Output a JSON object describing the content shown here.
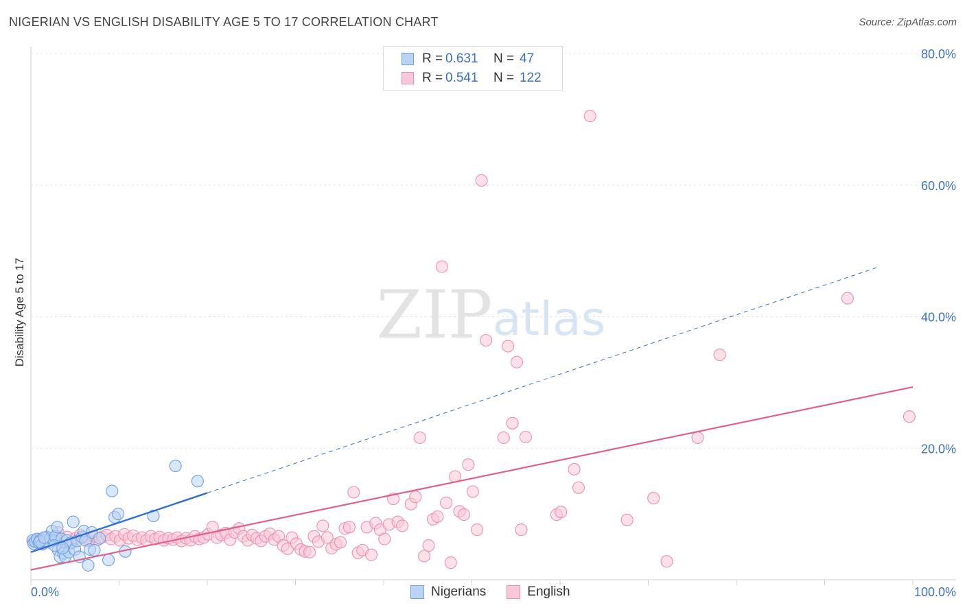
{
  "header": {
    "title": "NIGERIAN VS ENGLISH DISABILITY AGE 5 TO 17 CORRELATION CHART",
    "source": "Source: ZipAtlas.com"
  },
  "legend": {
    "r_label": "R =",
    "n_label": "N =",
    "rows": [
      {
        "name": "Nigerians",
        "r": "0.631",
        "n": "47",
        "fill": "#b8d3f5",
        "stroke": "#6f9fe0"
      },
      {
        "name": "English",
        "r": "0.541",
        "n": "122",
        "fill": "#f9c8d7",
        "stroke": "#ee8fae"
      }
    ]
  },
  "watermark": {
    "zip": "ZIP",
    "atlas": "atlas"
  },
  "chart_data": {
    "type": "scatter",
    "title": "NIGERIAN VS ENGLISH DISABILITY AGE 5 TO 17 CORRELATION CHART",
    "xlabel": "",
    "ylabel": "Disability Age 5 to 17",
    "xlim": [
      0,
      100
    ],
    "ylim": [
      0,
      80
    ],
    "x_tick_labels": [
      "0.0%",
      "100.0%"
    ],
    "y_ticks": [
      20,
      40,
      60,
      80
    ],
    "y_tick_labels": [
      "20.0%",
      "40.0%",
      "60.0%",
      "80.0%"
    ],
    "grid": true,
    "series": [
      {
        "name": "Nigerians",
        "color": "#6f9fe0",
        "fill": "#b8d3f5",
        "trend_color": "#2f6fd0",
        "trend": {
          "x0": 0,
          "y0": 4.2,
          "x1": 20,
          "y1": 13.2,
          "dash_to_x": 96,
          "dash_to_y": 47.5
        },
        "points": [
          [
            0.2,
            6.0
          ],
          [
            0.3,
            5.5
          ],
          [
            0.5,
            5.8
          ],
          [
            0.7,
            6.2
          ],
          [
            0.9,
            5.6
          ],
          [
            1.1,
            6.1
          ],
          [
            1.3,
            5.4
          ],
          [
            1.6,
            5.9
          ],
          [
            1.8,
            6.5
          ],
          [
            2.0,
            5.7
          ],
          [
            2.2,
            6.3
          ],
          [
            2.4,
            7.4
          ],
          [
            2.6,
            5.9
          ],
          [
            2.8,
            6.6
          ],
          [
            3.0,
            8.0
          ],
          [
            3.1,
            4.5
          ],
          [
            3.3,
            3.5
          ],
          [
            3.5,
            6.2
          ],
          [
            3.7,
            4.0
          ],
          [
            3.9,
            3.5
          ],
          [
            4.1,
            6.0
          ],
          [
            4.3,
            4.2
          ],
          [
            4.5,
            5.6
          ],
          [
            4.8,
            8.8
          ],
          [
            5.0,
            4.6
          ],
          [
            5.2,
            5.9
          ],
          [
            5.5,
            3.5
          ],
          [
            5.8,
            6.5
          ],
          [
            6.0,
            7.4
          ],
          [
            6.2,
            6.0
          ],
          [
            6.5,
            2.2
          ],
          [
            6.7,
            4.6
          ],
          [
            6.9,
            7.2
          ],
          [
            7.2,
            4.5
          ],
          [
            7.8,
            6.3
          ],
          [
            8.8,
            3.0
          ],
          [
            9.2,
            13.5
          ],
          [
            9.5,
            9.5
          ],
          [
            9.9,
            10.0
          ],
          [
            10.7,
            4.3
          ],
          [
            13.9,
            9.7
          ],
          [
            16.4,
            17.3
          ],
          [
            18.9,
            15.0
          ],
          [
            1.0,
            5.8
          ],
          [
            1.5,
            6.4
          ],
          [
            2.7,
            5.2
          ],
          [
            3.6,
            4.8
          ]
        ]
      },
      {
        "name": "English",
        "color": "#ee8fae",
        "fill": "#f9c8d7",
        "trend_color": "#e0608a",
        "trend": {
          "x0": 0,
          "y0": 1.5,
          "x1": 100,
          "y1": 29.3
        },
        "points": [
          [
            0.3,
            5.8
          ],
          [
            0.8,
            6.2
          ],
          [
            1.3,
            5.5
          ],
          [
            2.0,
            6.4
          ],
          [
            2.6,
            6.0
          ],
          [
            3.1,
            7.2
          ],
          [
            3.6,
            5.8
          ],
          [
            4.1,
            6.5
          ],
          [
            4.6,
            5.6
          ],
          [
            5.1,
            6.3
          ],
          [
            5.6,
            6.8
          ],
          [
            6.1,
            6.4
          ],
          [
            6.6,
            5.9
          ],
          [
            7.1,
            6.6
          ],
          [
            7.6,
            6.1
          ],
          [
            8.1,
            6.5
          ],
          [
            8.6,
            6.8
          ],
          [
            9.1,
            6.2
          ],
          [
            9.6,
            6.6
          ],
          [
            10.1,
            6.0
          ],
          [
            10.6,
            6.9
          ],
          [
            11.1,
            6.3
          ],
          [
            11.6,
            6.7
          ],
          [
            12.1,
            6.1
          ],
          [
            12.6,
            6.4
          ],
          [
            13.1,
            6.0
          ],
          [
            13.6,
            6.6
          ],
          [
            14.1,
            6.2
          ],
          [
            14.6,
            6.5
          ],
          [
            15.1,
            6.0
          ],
          [
            15.6,
            6.3
          ],
          [
            16.1,
            6.1
          ],
          [
            16.6,
            6.4
          ],
          [
            17.1,
            5.9
          ],
          [
            17.6,
            6.3
          ],
          [
            18.1,
            6.0
          ],
          [
            18.6,
            6.6
          ],
          [
            19.1,
            6.2
          ],
          [
            19.6,
            6.4
          ],
          [
            20.1,
            6.9
          ],
          [
            20.6,
            8.0
          ],
          [
            21.1,
            6.4
          ],
          [
            21.6,
            6.8
          ],
          [
            22.1,
            7.1
          ],
          [
            22.6,
            6.1
          ],
          [
            23.1,
            7.2
          ],
          [
            23.6,
            7.8
          ],
          [
            24.1,
            6.6
          ],
          [
            24.6,
            6.0
          ],
          [
            25.1,
            6.8
          ],
          [
            25.6,
            6.3
          ],
          [
            26.1,
            5.9
          ],
          [
            26.6,
            6.6
          ],
          [
            27.1,
            7.0
          ],
          [
            27.6,
            6.1
          ],
          [
            28.1,
            6.6
          ],
          [
            28.6,
            5.2
          ],
          [
            29.1,
            4.7
          ],
          [
            29.6,
            6.4
          ],
          [
            30.1,
            5.5
          ],
          [
            30.6,
            4.6
          ],
          [
            31.1,
            4.3
          ],
          [
            31.6,
            4.2
          ],
          [
            32.1,
            6.6
          ],
          [
            32.6,
            5.8
          ],
          [
            33.1,
            8.2
          ],
          [
            33.6,
            6.4
          ],
          [
            34.1,
            4.8
          ],
          [
            34.6,
            5.4
          ],
          [
            35.1,
            5.7
          ],
          [
            35.6,
            7.8
          ],
          [
            36.1,
            8.0
          ],
          [
            36.6,
            13.3
          ],
          [
            37.1,
            4.1
          ],
          [
            37.6,
            4.5
          ],
          [
            38.1,
            8.0
          ],
          [
            38.6,
            3.8
          ],
          [
            39.1,
            8.6
          ],
          [
            39.6,
            7.6
          ],
          [
            40.1,
            6.2
          ],
          [
            40.6,
            8.4
          ],
          [
            41.1,
            12.3
          ],
          [
            41.6,
            8.8
          ],
          [
            42.1,
            8.2
          ],
          [
            43.1,
            11.5
          ],
          [
            43.6,
            12.6
          ],
          [
            44.1,
            21.6
          ],
          [
            44.6,
            3.6
          ],
          [
            45.1,
            5.2
          ],
          [
            45.6,
            9.2
          ],
          [
            46.1,
            9.6
          ],
          [
            46.6,
            47.6
          ],
          [
            47.1,
            11.7
          ],
          [
            47.6,
            2.6
          ],
          [
            48.1,
            15.7
          ],
          [
            48.6,
            10.4
          ],
          [
            49.1,
            9.9
          ],
          [
            49.6,
            17.5
          ],
          [
            50.1,
            13.4
          ],
          [
            50.6,
            7.6
          ],
          [
            51.1,
            60.7
          ],
          [
            51.6,
            36.4
          ],
          [
            53.6,
            21.6
          ],
          [
            54.1,
            35.5
          ],
          [
            54.6,
            23.8
          ],
          [
            55.1,
            33.1
          ],
          [
            55.6,
            7.6
          ],
          [
            56.1,
            21.7
          ],
          [
            59.6,
            9.9
          ],
          [
            60.1,
            10.3
          ],
          [
            61.6,
            16.8
          ],
          [
            62.1,
            14.0
          ],
          [
            63.4,
            70.5
          ],
          [
            67.6,
            9.1
          ],
          [
            70.6,
            12.4
          ],
          [
            72.1,
            2.8
          ],
          [
            75.6,
            21.6
          ],
          [
            78.1,
            34.2
          ],
          [
            92.6,
            42.8
          ],
          [
            99.6,
            24.8
          ]
        ]
      }
    ]
  }
}
